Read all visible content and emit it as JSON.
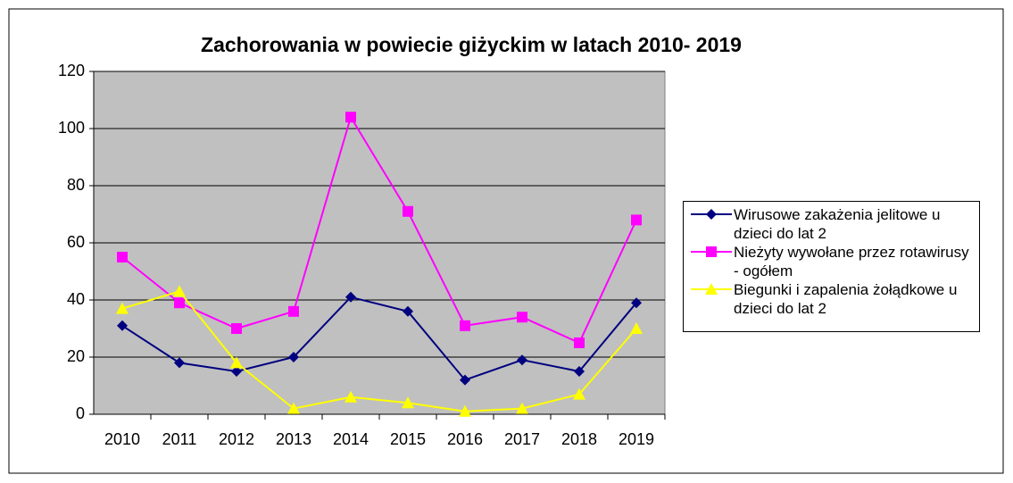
{
  "chart_data": {
    "type": "line",
    "title": "Zachorowania w powiecie giżyckim w latach 2010- 2019",
    "categories": [
      "2010",
      "2011",
      "2012",
      "2013",
      "2014",
      "2015",
      "2016",
      "2017",
      "2018",
      "2019"
    ],
    "series": [
      {
        "name": "Wirusowe zakażenia jelitowe u dzieci do lat 2",
        "color": "#000080",
        "marker": "diamond",
        "values": [
          31,
          18,
          15,
          20,
          41,
          36,
          12,
          19,
          15,
          39
        ]
      },
      {
        "name": "Nieżyty wywołane przez rotawirusy - ogółem",
        "color": "#ff00ff",
        "marker": "square",
        "values": [
          55,
          39,
          30,
          36,
          104,
          71,
          31,
          34,
          25,
          68
        ]
      },
      {
        "name": "Biegunki i zapalenia żołądkowe u dzieci do lat 2",
        "color": "#ffff00",
        "marker": "triangle",
        "values": [
          37,
          43,
          18,
          2,
          6,
          4,
          1,
          2,
          7,
          30
        ]
      }
    ],
    "ylim": [
      0,
      120
    ],
    "yticks": [
      0,
      20,
      40,
      60,
      80,
      100,
      120
    ],
    "grid": true,
    "legend": "right"
  }
}
